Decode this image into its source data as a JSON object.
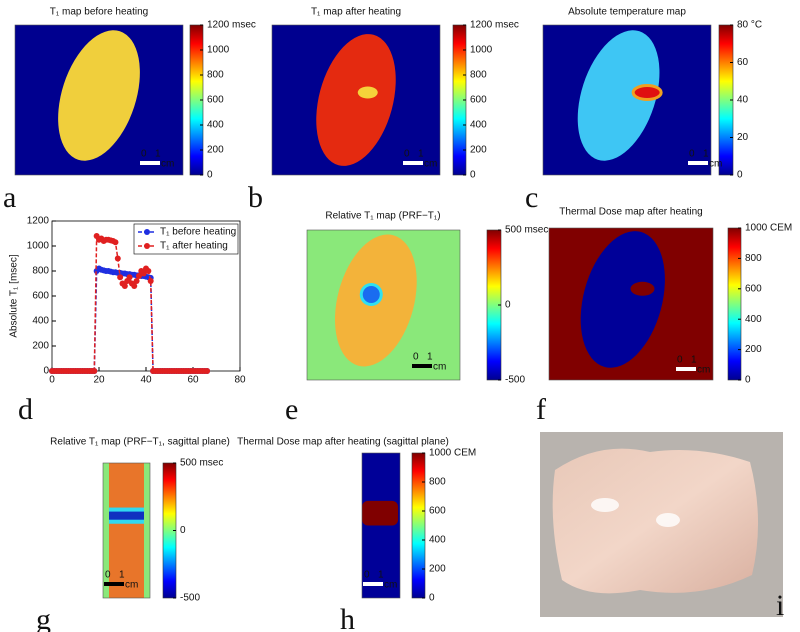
{
  "chart_data": [
    {
      "type": "heatmap",
      "label": "a",
      "title": "T₁ map before heating",
      "clim": [
        0,
        1200
      ],
      "cticks": [
        0,
        200,
        400,
        600,
        800,
        1000,
        {
          "value": 1200,
          "label": "1200 msec"
        }
      ],
      "scalebar": [
        "0",
        "1",
        "cm"
      ]
    },
    {
      "type": "heatmap",
      "label": "b",
      "title": "T₁ map after heating",
      "clim": [
        0,
        1200
      ],
      "cticks": [
        0,
        200,
        400,
        600,
        800,
        1000,
        {
          "value": 1200,
          "label": "1200 msec"
        }
      ],
      "scalebar": [
        "0",
        "1",
        "cm"
      ]
    },
    {
      "type": "heatmap",
      "label": "c",
      "title": "Absolute temperature map",
      "clim": [
        0,
        80
      ],
      "cticks": [
        0,
        20,
        40,
        60,
        {
          "value": 80,
          "label": "80 °C"
        }
      ],
      "scalebar": [
        "0",
        "1",
        "cm"
      ]
    },
    {
      "type": "line",
      "label": "d",
      "ylabel": "Absolute T₁ [msec]",
      "xlim": [
        0,
        80
      ],
      "xticks": [
        0,
        20,
        40,
        60,
        80
      ],
      "ylim": [
        0,
        1200
      ],
      "yticks": [
        0,
        200,
        400,
        600,
        800,
        1000,
        1200
      ],
      "x": [
        0,
        1,
        2,
        3,
        4,
        5,
        6,
        7,
        8,
        9,
        10,
        11,
        12,
        13,
        14,
        15,
        16,
        17,
        18,
        19,
        20,
        21,
        22,
        23,
        24,
        25,
        26,
        27,
        28,
        29,
        30,
        31,
        32,
        33,
        34,
        35,
        36,
        37,
        38,
        39,
        40,
        41,
        42,
        43,
        44,
        45,
        46,
        47,
        48,
        49,
        50,
        51,
        52,
        53,
        54,
        55,
        56,
        57,
        58,
        59,
        60,
        61,
        62,
        63,
        64,
        65,
        66
      ],
      "series": [
        {
          "name": "T₁ before heating",
          "color": "#1f2fe0",
          "values": [
            0,
            0,
            0,
            0,
            0,
            0,
            0,
            0,
            0,
            0,
            0,
            0,
            0,
            0,
            0,
            0,
            0,
            0,
            0,
            800,
            820,
            810,
            805,
            800,
            800,
            795,
            790,
            790,
            785,
            785,
            780,
            780,
            775,
            775,
            770,
            770,
            765,
            765,
            760,
            760,
            755,
            750,
            745,
            0,
            0,
            0,
            0,
            0,
            0,
            0,
            0,
            0,
            0,
            0,
            0,
            0,
            0,
            0,
            0,
            0,
            0,
            0,
            0,
            0,
            0,
            0,
            0
          ]
        },
        {
          "name": "T₁ after heating",
          "color": "#e02020",
          "values": [
            0,
            0,
            0,
            0,
            0,
            0,
            0,
            0,
            0,
            0,
            0,
            0,
            0,
            0,
            0,
            0,
            0,
            0,
            0,
            1080,
            1050,
            1060,
            1040,
            1050,
            1050,
            1045,
            1040,
            1030,
            900,
            750,
            700,
            680,
            720,
            750,
            700,
            680,
            720,
            760,
            800,
            780,
            820,
            800,
            720,
            0,
            0,
            0,
            0,
            0,
            0,
            0,
            0,
            0,
            0,
            0,
            0,
            0,
            0,
            0,
            0,
            0,
            0,
            0,
            0,
            0,
            0,
            0,
            0
          ]
        }
      ],
      "legend": "upper right"
    },
    {
      "type": "heatmap",
      "label": "e",
      "title": "Relative T₁ map (PRF−T₁)",
      "clim": [
        -500,
        500
      ],
      "cticks": [
        -500,
        0,
        {
          "value": 500,
          "label": "500 msec"
        }
      ],
      "scalebar": [
        "0",
        "1",
        "cm"
      ]
    },
    {
      "type": "heatmap",
      "label": "f",
      "title": "Thermal Dose map after heating",
      "clim": [
        0,
        1000
      ],
      "cticks": [
        0,
        200,
        400,
        600,
        800,
        {
          "value": 1000,
          "label": "1000 CEM"
        }
      ],
      "scalebar": [
        "0",
        "1",
        "cm"
      ]
    },
    {
      "type": "heatmap",
      "label": "g",
      "title": "Relative T₁ map (PRF−T₁, sagittal plane)",
      "clim": [
        -500,
        500
      ],
      "cticks": [
        -500,
        0,
        {
          "value": 500,
          "label": "500 msec"
        }
      ],
      "scalebar": [
        "0",
        "1",
        "cm"
      ]
    },
    {
      "type": "heatmap",
      "label": "h",
      "title": "Thermal Dose map after heating (sagittal plane)",
      "clim": [
        0,
        1000
      ],
      "cticks": [
        0,
        200,
        400,
        600,
        800,
        {
          "value": 1000,
          "label": "1000 CEM"
        }
      ],
      "scalebar": [
        "0",
        "1",
        "cm"
      ]
    }
  ],
  "photo": {
    "label": "i"
  }
}
